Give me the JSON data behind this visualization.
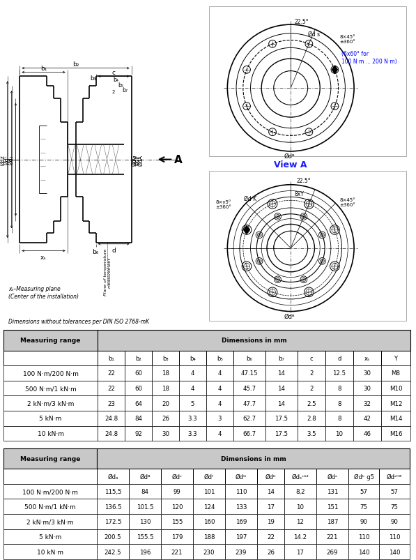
{
  "note": "Dimensions without tolerances per DIN ISO 2768-mK",
  "blue_note": "(6x60° for\n100 N·m ... 200 N·m)",
  "view_a_label": "View A",
  "table1_data": [
    [
      "100 N·m/200 N·m",
      "22",
      "60",
      "18",
      "4",
      "4",
      "47.15",
      "14",
      "2",
      "12.5",
      "30",
      "M8"
    ],
    [
      "500 N·m/1 kN·m",
      "22",
      "60",
      "18",
      "4",
      "4",
      "45.7",
      "14",
      "2",
      "8",
      "30",
      "M10"
    ],
    [
      "2 kN·m/3 kN·m",
      "23",
      "64",
      "20",
      "5",
      "4",
      "47.7",
      "14",
      "2.5",
      "8",
      "32",
      "M12"
    ],
    [
      "5 kN·m",
      "24.8",
      "84",
      "26",
      "3.3",
      "3",
      "62.7",
      "17.5",
      "2.8",
      "8",
      "42",
      "M14"
    ],
    [
      "10 kN·m",
      "24.8",
      "92",
      "30",
      "3.3",
      "4",
      "66.7",
      "17.5",
      "3.5",
      "10",
      "46",
      "M16"
    ]
  ],
  "table2_data": [
    [
      "100 N·m/200 N·m",
      "115,5",
      "84",
      "99",
      "101",
      "110",
      "14",
      "8,2",
      "131",
      "57",
      "57"
    ],
    [
      "500 N·m/1 kN·m",
      "136.5",
      "101.5",
      "120",
      "124",
      "133",
      "17",
      "10",
      "151",
      "75",
      "75"
    ],
    [
      "2 kN·m/3 kN·m",
      "172.5",
      "130",
      "155",
      "160",
      "169",
      "19",
      "12",
      "187",
      "90",
      "90"
    ],
    [
      "5 kN·m",
      "200.5",
      "155.5",
      "179",
      "188",
      "197",
      "22",
      "14.2",
      "221",
      "110",
      "110"
    ],
    [
      "10 kN·m",
      "242.5",
      "196",
      "221",
      "230",
      "239",
      "26",
      "17",
      "269",
      "140",
      "140"
    ]
  ],
  "t1_col_labels": [
    "b₁",
    "b₂",
    "b₃",
    "b₄",
    "b₅",
    "b₆",
    "b₇",
    "c",
    "d",
    "xₛ",
    "Y"
  ],
  "t2_col_labels": [
    "Ødₐ",
    "Ødᴮ",
    "Ødᶜ",
    "Ødᶠ",
    "Ødᴳ",
    "Ødᴷ",
    "Ødₛᶜ¹²",
    "Ødᶻ",
    "Ødᵏ g5",
    "Ødᶻᴴ⁶"
  ]
}
